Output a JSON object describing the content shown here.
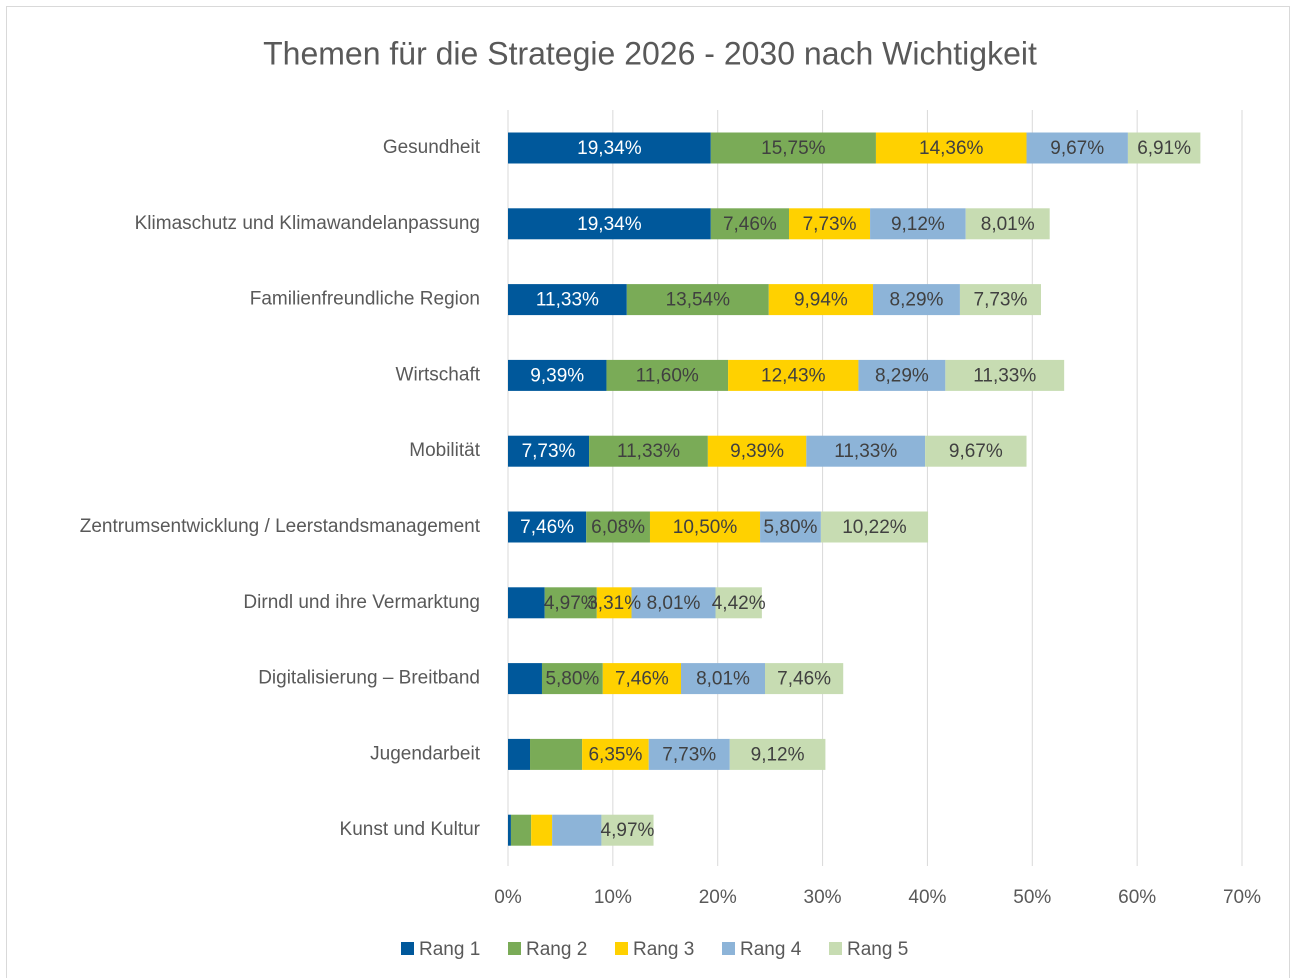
{
  "chart_data": {
    "type": "stacked-bar-horizontal",
    "title": "Themen für die Strategie 2026 - 2030 nach Wichtigkeit",
    "categories": [
      "Gesundheit",
      "Klimaschutz und Klimawandelanpassung",
      "Familienfreundliche Region",
      "Wirtschaft",
      "Mobilität",
      "Zentrumsentwicklung / Leerstandsmanagement",
      "Dirndl und ihre Vermarktung",
      "Digitalisierung – Breitband",
      "Jugendarbeit",
      "Kunst und Kultur"
    ],
    "series": [
      {
        "name": "Rang 1",
        "color": "#00589b",
        "values": [
          19.34,
          19.34,
          11.33,
          9.39,
          7.73,
          7.46,
          3.5,
          3.24,
          2.1,
          0.28
        ],
        "value_labels": [
          "19,34%",
          "19,34%",
          "11,33%",
          "9,39%",
          "7,73%",
          "7,46%",
          null,
          null,
          null,
          null
        ]
      },
      {
        "name": "Rang 2",
        "color": "#7aab57",
        "values": [
          15.75,
          7.46,
          13.54,
          11.6,
          11.33,
          6.08,
          4.97,
          5.8,
          4.97,
          1.93
        ],
        "value_labels": [
          "15,75%",
          "7,46%",
          "13,54%",
          "11,60%",
          "11,33%",
          "6,08%",
          "4,97%",
          "5,80%",
          null,
          null
        ]
      },
      {
        "name": "Rang 3",
        "color": "#ffd100",
        "values": [
          14.36,
          7.73,
          9.94,
          12.43,
          9.39,
          10.5,
          3.31,
          7.46,
          6.35,
          2.0
        ],
        "value_labels": [
          "14,36%",
          "7,73%",
          "9,94%",
          "12,43%",
          "9,39%",
          "10,50%",
          "3,31%",
          "7,46%",
          "6,35%",
          null
        ]
      },
      {
        "name": "Rang 4",
        "color": "#8db4d8",
        "values": [
          9.67,
          9.12,
          8.29,
          8.29,
          11.33,
          5.8,
          8.01,
          8.01,
          7.73,
          4.7
        ],
        "value_labels": [
          "9,67%",
          "9,12%",
          "8,29%",
          "8,29%",
          "11,33%",
          "5,80%",
          "8,01%",
          "8,01%",
          "7,73%",
          null
        ]
      },
      {
        "name": "Rang 5",
        "color": "#c7dcb2",
        "values": [
          6.91,
          8.01,
          7.73,
          11.33,
          9.67,
          10.22,
          4.42,
          7.46,
          9.12,
          4.97
        ],
        "value_labels": [
          "6,91%",
          "8,01%",
          "7,73%",
          "11,33%",
          "9,67%",
          "10,22%",
          "4,42%",
          "7,46%",
          "9,12%",
          "4,97%"
        ]
      }
    ],
    "xlim": [
      0,
      70
    ],
    "xticks": [
      {
        "value": 0,
        "label": "0%"
      },
      {
        "value": 10,
        "label": "10%"
      },
      {
        "value": 20,
        "label": "20%"
      },
      {
        "value": 30,
        "label": "30%"
      },
      {
        "value": 40,
        "label": "40%"
      },
      {
        "value": 50,
        "label": "50%"
      },
      {
        "value": 60,
        "label": "60%"
      },
      {
        "value": 70,
        "label": "70%"
      }
    ],
    "grid": true,
    "legend": "bottom"
  }
}
